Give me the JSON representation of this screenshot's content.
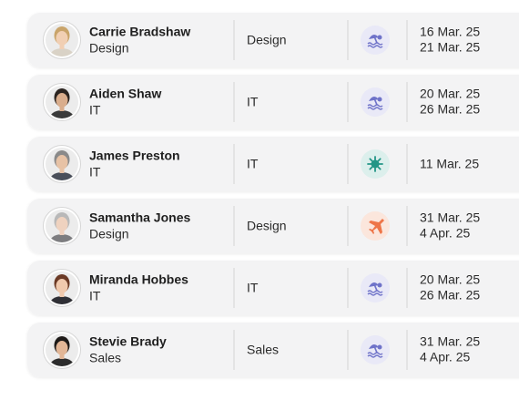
{
  "rows": [
    {
      "name": "Carrie Bradshaw",
      "subtitle": "Design",
      "department": "Design",
      "dates": [
        "16 Mar. 25",
        "21 Mar. 25"
      ]
    },
    {
      "name": "Aiden Shaw",
      "subtitle": "IT",
      "department": "IT",
      "dates": [
        "20 Mar. 25",
        "26 Mar. 25"
      ]
    },
    {
      "name": "James Preston",
      "subtitle": "IT",
      "department": "IT",
      "dates": [
        "11 Mar. 25"
      ]
    },
    {
      "name": "Samantha Jones",
      "subtitle": "Design",
      "department": "Design",
      "dates": [
        "31 Mar. 25",
        "4 Apr. 25"
      ]
    },
    {
      "name": "Miranda Hobbes",
      "subtitle": "IT",
      "department": "IT",
      "dates": [
        "20 Mar. 25",
        "26 Mar. 25"
      ]
    },
    {
      "name": "Stevie Brady",
      "subtitle": "Sales",
      "department": "Sales",
      "dates": [
        "31 Mar. 25",
        "4 Apr. 25"
      ]
    }
  ]
}
